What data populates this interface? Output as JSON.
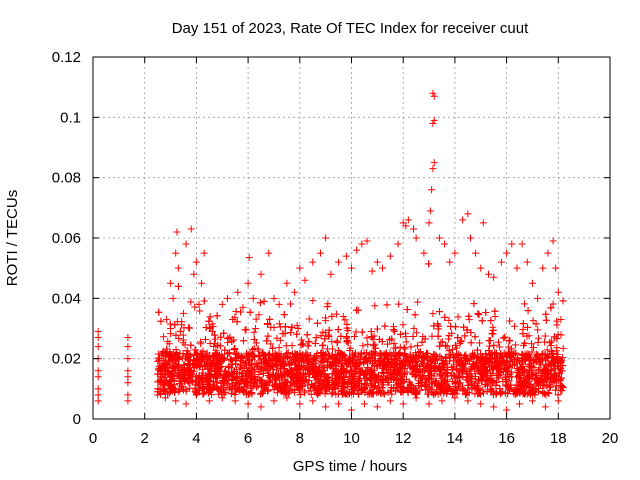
{
  "chart_data": {
    "type": "scatter",
    "title": "Day 151 of 2023, Rate Of TEC Index for receiver cuut",
    "xlabel": "GPS time / hours",
    "ylabel": "ROTI / TECUs",
    "xlim": [
      0,
      20
    ],
    "ylim": [
      0,
      0.12
    ],
    "grid": true,
    "marker": "+",
    "color": "#ff0000",
    "x_ticks": [
      "0",
      "2",
      "4",
      "6",
      "8",
      "10",
      "12",
      "14",
      "16",
      "18",
      "20"
    ],
    "y_ticks": [
      "0",
      "0.02",
      "0.04",
      "0.06",
      "0.08",
      "0.1",
      "0.12"
    ],
    "series": [
      {
        "name": "ROTI",
        "points": [
          [
            0.2,
            0.01
          ],
          [
            0.2,
            0.014
          ],
          [
            0.2,
            0.016
          ],
          [
            0.2,
            0.02
          ],
          [
            0.2,
            0.024
          ],
          [
            0.2,
            0.027
          ],
          [
            0.2,
            0.029
          ],
          [
            0.2,
            0.006
          ],
          [
            0.2,
            0.008
          ],
          [
            1.35,
            0.008
          ],
          [
            1.35,
            0.012
          ],
          [
            1.35,
            0.014
          ],
          [
            1.35,
            0.016
          ],
          [
            1.35,
            0.02
          ],
          [
            1.35,
            0.024
          ],
          [
            1.35,
            0.027
          ],
          [
            1.35,
            0.006
          ],
          [
            2.6,
            0.01
          ],
          [
            2.7,
            0.015
          ],
          [
            2.8,
            0.018
          ],
          [
            2.9,
            0.012
          ],
          [
            3.0,
            0.03
          ],
          [
            3.0,
            0.045
          ],
          [
            3.1,
            0.04
          ],
          [
            3.2,
            0.055
          ],
          [
            3.25,
            0.062
          ],
          [
            3.3,
            0.05
          ],
          [
            3.5,
            0.035
          ],
          [
            3.6,
            0.058
          ],
          [
            3.8,
            0.063
          ],
          [
            3.9,
            0.048
          ],
          [
            4.0,
            0.052
          ],
          [
            4.1,
            0.038
          ],
          [
            4.2,
            0.045
          ],
          [
            4.3,
            0.055
          ],
          [
            4.5,
            0.03
          ],
          [
            4.7,
            0.025
          ],
          [
            5.0,
            0.038
          ],
          [
            5.2,
            0.04
          ],
          [
            5.4,
            0.033
          ],
          [
            5.6,
            0.042
          ],
          [
            5.8,
            0.037
          ],
          [
            6.0,
            0.045
          ],
          [
            6.2,
            0.04
          ],
          [
            6.5,
            0.048
          ],
          [
            6.8,
            0.055
          ],
          [
            7.0,
            0.04
          ],
          [
            7.2,
            0.038
          ],
          [
            7.5,
            0.045
          ],
          [
            7.8,
            0.042
          ],
          [
            8.0,
            0.05
          ],
          [
            8.2,
            0.046
          ],
          [
            8.5,
            0.052
          ],
          [
            8.8,
            0.055
          ],
          [
            9.0,
            0.06
          ],
          [
            9.2,
            0.048
          ],
          [
            9.5,
            0.052
          ],
          [
            9.8,
            0.054
          ],
          [
            10.0,
            0.05
          ],
          [
            10.2,
            0.056
          ],
          [
            10.4,
            0.058
          ],
          [
            10.6,
            0.059
          ],
          [
            10.8,
            0.049
          ],
          [
            11.0,
            0.052
          ],
          [
            11.2,
            0.05
          ],
          [
            11.5,
            0.054
          ],
          [
            11.8,
            0.058
          ],
          [
            12.0,
            0.065
          ],
          [
            12.1,
            0.064
          ],
          [
            12.2,
            0.066
          ],
          [
            12.4,
            0.063
          ],
          [
            12.5,
            0.06
          ],
          [
            12.8,
            0.055
          ],
          [
            13.0,
            0.065
          ],
          [
            13.05,
            0.069
          ],
          [
            13.1,
            0.076
          ],
          [
            13.15,
            0.083
          ],
          [
            13.2,
            0.085
          ],
          [
            13.15,
            0.098
          ],
          [
            13.2,
            0.099
          ],
          [
            13.2,
            0.107
          ],
          [
            13.15,
            0.108
          ],
          [
            13.4,
            0.06
          ],
          [
            13.6,
            0.058
          ],
          [
            13.8,
            0.052
          ],
          [
            14.0,
            0.055
          ],
          [
            14.3,
            0.066
          ],
          [
            14.5,
            0.068
          ],
          [
            14.6,
            0.06
          ],
          [
            14.8,
            0.055
          ],
          [
            15.0,
            0.05
          ],
          [
            15.1,
            0.065
          ],
          [
            15.3,
            0.048
          ],
          [
            15.5,
            0.047
          ],
          [
            15.8,
            0.052
          ],
          [
            16.0,
            0.055
          ],
          [
            16.2,
            0.058
          ],
          [
            16.4,
            0.05
          ],
          [
            16.6,
            0.058
          ],
          [
            16.8,
            0.052
          ],
          [
            17.0,
            0.045
          ],
          [
            17.2,
            0.04
          ],
          [
            17.4,
            0.05
          ],
          [
            17.6,
            0.055
          ],
          [
            17.8,
            0.059
          ],
          [
            17.9,
            0.05
          ],
          [
            18.0,
            0.042
          ],
          [
            18.1,
            0.033
          ],
          [
            2.5,
            0.008
          ],
          [
            2.8,
            0.007
          ],
          [
            3.2,
            0.006
          ],
          [
            3.6,
            0.005
          ],
          [
            4.0,
            0.008
          ],
          [
            4.5,
            0.006
          ],
          [
            5.0,
            0.007
          ],
          [
            5.5,
            0.006
          ],
          [
            6.0,
            0.005
          ],
          [
            6.5,
            0.004
          ],
          [
            7.0,
            0.006
          ],
          [
            7.5,
            0.007
          ],
          [
            8.0,
            0.005
          ],
          [
            8.5,
            0.006
          ],
          [
            9.0,
            0.004
          ],
          [
            9.5,
            0.005
          ],
          [
            10.0,
            0.003
          ],
          [
            10.5,
            0.005
          ],
          [
            11.0,
            0.004
          ],
          [
            11.5,
            0.006
          ],
          [
            12.0,
            0.005
          ],
          [
            12.5,
            0.007
          ],
          [
            13.0,
            0.005
          ],
          [
            13.5,
            0.006
          ],
          [
            14.0,
            0.007
          ],
          [
            14.5,
            0.006
          ],
          [
            15.0,
            0.005
          ],
          [
            15.5,
            0.004
          ],
          [
            16.0,
            0.003
          ],
          [
            16.5,
            0.005
          ],
          [
            17.0,
            0.006
          ],
          [
            17.5,
            0.004
          ],
          [
            18.0,
            0.006
          ]
        ]
      }
    ]
  }
}
